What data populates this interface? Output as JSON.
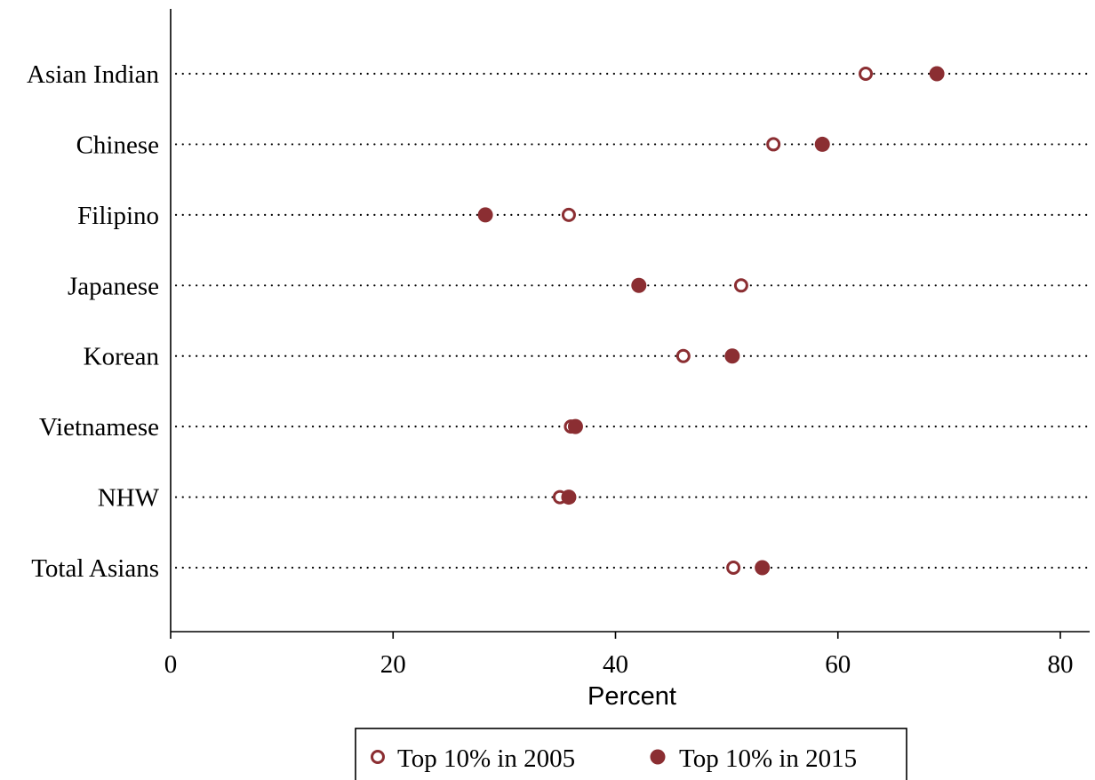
{
  "chart_data": {
    "type": "scatter",
    "subtype": "dot-plot",
    "categories": [
      "Asian Indian",
      "Chinese",
      "Filipino",
      "Japanese",
      "Korean",
      "Vietnamese",
      "NHW",
      "Total Asians"
    ],
    "series": [
      {
        "name": "Top 10% in 2005",
        "marker": "hollow-circle",
        "color": "#8b2e32",
        "values": [
          62.5,
          54.2,
          35.8,
          51.3,
          46.1,
          36.0,
          35.0,
          50.6
        ]
      },
      {
        "name": "Top 10% in 2015",
        "marker": "filled-circle",
        "color": "#8b2e32",
        "values": [
          68.9,
          58.6,
          28.3,
          42.1,
          50.5,
          36.4,
          35.8,
          53.2
        ]
      }
    ],
    "xlabel": "Percent",
    "ylabel": "",
    "xlim": [
      0,
      80
    ],
    "xticks": [
      "0",
      "20",
      "40",
      "60",
      "80"
    ],
    "grid": "dotted horizontal lines per category",
    "legend": {
      "placement": "bottom-center",
      "entries": [
        "Top 10% in 2005",
        "Top 10% in 2015"
      ]
    },
    "colors": {
      "marker": "#8b2e32",
      "axis": "#000000",
      "grid": "#000000"
    }
  }
}
